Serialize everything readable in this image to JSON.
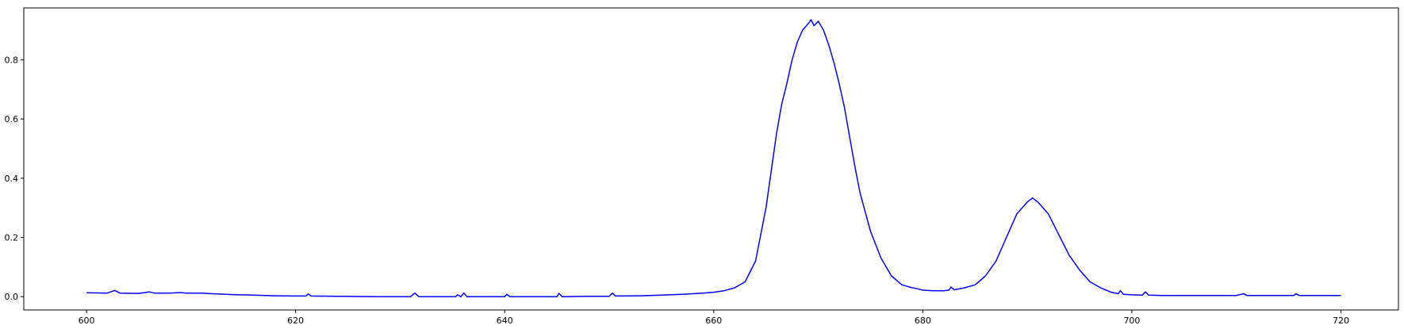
{
  "chart_data": {
    "type": "line",
    "title": "",
    "xlabel": "",
    "ylabel": "",
    "xlim": [
      594,
      725.5
    ],
    "ylim": [
      -0.045,
      0.975
    ],
    "grid": false,
    "legend": "none",
    "x_ticks": [
      "600",
      "620",
      "640",
      "660",
      "680",
      "700",
      "720"
    ],
    "y_ticks": [
      "0.0",
      "0.2",
      "0.4",
      "0.6",
      "0.8"
    ],
    "series": [
      {
        "color": "#0000ff",
        "points": [
          [
            600,
            0.013
          ],
          [
            602,
            0.012
          ],
          [
            602.7,
            0.021
          ],
          [
            603.2,
            0.012
          ],
          [
            605,
            0.011
          ],
          [
            606,
            0.016
          ],
          [
            606.5,
            0.012
          ],
          [
            608,
            0.012
          ],
          [
            609,
            0.014
          ],
          [
            609.5,
            0.012
          ],
          [
            611,
            0.012
          ],
          [
            612,
            0.01
          ],
          [
            614,
            0.007
          ],
          [
            616,
            0.005
          ],
          [
            618,
            0.003
          ],
          [
            620,
            0.002
          ],
          [
            621,
            0.002
          ],
          [
            621.2,
            0.009
          ],
          [
            621.5,
            0.002
          ],
          [
            624,
            0.001
          ],
          [
            628,
            0.0
          ],
          [
            631,
            0.0
          ],
          [
            631.4,
            0.012
          ],
          [
            631.8,
            0.0
          ],
          [
            634,
            0.0
          ],
          [
            635.3,
            0.0
          ],
          [
            635.5,
            0.006
          ],
          [
            635.8,
            0.0
          ],
          [
            636.1,
            0.012
          ],
          [
            636.4,
            0.0
          ],
          [
            638,
            0.0
          ],
          [
            640,
            0.0
          ],
          [
            640.2,
            0.008
          ],
          [
            640.5,
            0.0
          ],
          [
            643,
            0.0
          ],
          [
            645,
            0.0
          ],
          [
            645.2,
            0.011
          ],
          [
            645.5,
            0.0
          ],
          [
            648,
            0.001
          ],
          [
            650,
            0.001
          ],
          [
            650.3,
            0.012
          ],
          [
            650.6,
            0.002
          ],
          [
            653,
            0.003
          ],
          [
            655,
            0.005
          ],
          [
            657,
            0.008
          ],
          [
            659,
            0.012
          ],
          [
            660,
            0.015
          ],
          [
            661,
            0.02
          ],
          [
            662,
            0.03
          ],
          [
            663,
            0.05
          ],
          [
            664,
            0.12
          ],
          [
            665,
            0.3
          ],
          [
            666,
            0.55
          ],
          [
            666.5,
            0.65
          ],
          [
            667,
            0.72
          ],
          [
            667.5,
            0.8
          ],
          [
            668,
            0.86
          ],
          [
            668.5,
            0.9
          ],
          [
            669,
            0.92
          ],
          [
            669.3,
            0.935
          ],
          [
            669.6,
            0.915
          ],
          [
            670,
            0.93
          ],
          [
            670.5,
            0.9
          ],
          [
            671,
            0.85
          ],
          [
            671.5,
            0.79
          ],
          [
            672,
            0.72
          ],
          [
            672.5,
            0.64
          ],
          [
            673,
            0.54
          ],
          [
            673.5,
            0.44
          ],
          [
            674,
            0.35
          ],
          [
            675,
            0.22
          ],
          [
            676,
            0.13
          ],
          [
            677,
            0.07
          ],
          [
            678,
            0.04
          ],
          [
            679,
            0.03
          ],
          [
            679.3,
            0.028
          ],
          [
            680,
            0.022
          ],
          [
            681,
            0.02
          ],
          [
            682,
            0.02
          ],
          [
            682.5,
            0.022
          ],
          [
            682.7,
            0.032
          ],
          [
            683,
            0.023
          ],
          [
            684,
            0.03
          ],
          [
            685,
            0.04
          ],
          [
            686,
            0.07
          ],
          [
            687,
            0.12
          ],
          [
            688,
            0.2
          ],
          [
            689,
            0.28
          ],
          [
            690,
            0.32
          ],
          [
            690.5,
            0.333
          ],
          [
            691,
            0.32
          ],
          [
            692,
            0.28
          ],
          [
            693,
            0.21
          ],
          [
            694,
            0.14
          ],
          [
            695,
            0.09
          ],
          [
            696,
            0.05
          ],
          [
            697,
            0.03
          ],
          [
            698,
            0.015
          ],
          [
            698.7,
            0.01
          ],
          [
            698.9,
            0.02
          ],
          [
            699.2,
            0.008
          ],
          [
            700,
            0.006
          ],
          [
            701,
            0.005
          ],
          [
            701.3,
            0.016
          ],
          [
            701.6,
            0.005
          ],
          [
            703,
            0.004
          ],
          [
            706,
            0.004
          ],
          [
            708,
            0.004
          ],
          [
            710,
            0.004
          ],
          [
            710.7,
            0.01
          ],
          [
            711,
            0.004
          ],
          [
            713,
            0.004
          ],
          [
            715.5,
            0.004
          ],
          [
            715.7,
            0.01
          ],
          [
            716,
            0.004
          ],
          [
            718,
            0.004
          ],
          [
            720,
            0.004
          ]
        ]
      }
    ]
  }
}
